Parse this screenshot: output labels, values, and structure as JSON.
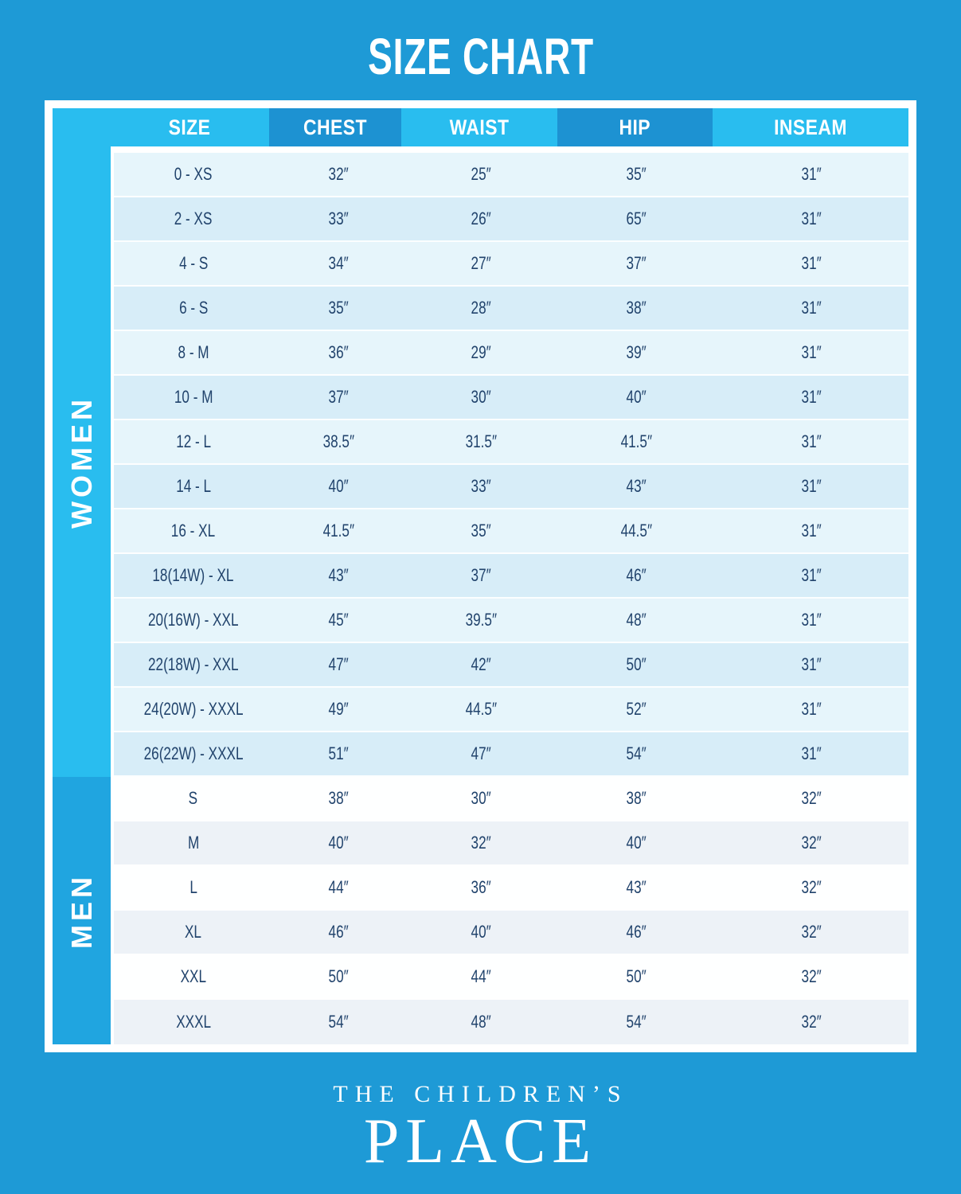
{
  "title": "SIZE CHART",
  "brand": {
    "line1": "THE CHILDREN’S",
    "line2": "PLACE"
  },
  "colors": {
    "page_background": "#1E9AD6",
    "accent_cyan": "#29BDEF",
    "header_dark_block": "#1D92D2",
    "men_sidebar": "#20A5E0",
    "women_row_light": "#E6F5FB",
    "women_row_dark": "#D7EDF8",
    "men_row_light": "#FFFFFF",
    "men_row_dark": "#EDF2F7",
    "cell_text": "#21436C",
    "header_text": "#FFFFFF"
  },
  "chart_data": {
    "type": "table",
    "title": "SIZE CHART",
    "columns": [
      "SIZE",
      "CHEST",
      "WAIST",
      "HIP",
      "INSEAM"
    ],
    "sections": [
      {
        "label": "WOMEN",
        "rows": [
          [
            "0 - XS",
            "32″",
            "25″",
            "35″",
            "31″"
          ],
          [
            "2 - XS",
            "33″",
            "26″",
            "65″",
            "31″"
          ],
          [
            "4 - S",
            "34″",
            "27″",
            "37″",
            "31″"
          ],
          [
            "6 - S",
            "35″",
            "28″",
            "38″",
            "31″"
          ],
          [
            "8 - M",
            "36″",
            "29″",
            "39″",
            "31″"
          ],
          [
            "10 - M",
            "37″",
            "30″",
            "40″",
            "31″"
          ],
          [
            "12 - L",
            "38.5″",
            "31.5″",
            "41.5″",
            "31″"
          ],
          [
            "14 - L",
            "40″",
            "33″",
            "43″",
            "31″"
          ],
          [
            "16 - XL",
            "41.5″",
            "35″",
            "44.5″",
            "31″"
          ],
          [
            "18(14W) - XL",
            "43″",
            "37″",
            "46″",
            "31″"
          ],
          [
            "20(16W) - XXL",
            "45″",
            "39.5″",
            "48″",
            "31″"
          ],
          [
            "22(18W) - XXL",
            "47″",
            "42″",
            "50″",
            "31″"
          ],
          [
            "24(20W) - XXXL",
            "49″",
            "44.5″",
            "52″",
            "31″"
          ],
          [
            "26(22W) - XXXL",
            "51″",
            "47″",
            "54″",
            "31″"
          ]
        ]
      },
      {
        "label": "MEN",
        "rows": [
          [
            "S",
            "38″",
            "30″",
            "38″",
            "32″"
          ],
          [
            "M",
            "40″",
            "32″",
            "40″",
            "32″"
          ],
          [
            "L",
            "44″",
            "36″",
            "43″",
            "32″"
          ],
          [
            "XL",
            "46″",
            "40″",
            "46″",
            "32″"
          ],
          [
            "XXL",
            "50″",
            "44″",
            "50″",
            "32″"
          ],
          [
            "XXXL",
            "54″",
            "48″",
            "54″",
            "32″"
          ]
        ]
      }
    ]
  }
}
